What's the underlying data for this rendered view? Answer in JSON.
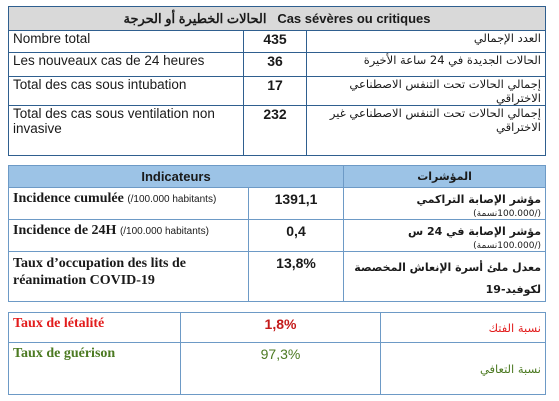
{
  "severe": {
    "title_ar": "الحالات الخطيرة أو الحرجة",
    "title_fr": "Cas sévères ou critiques",
    "rows": [
      {
        "fr": "Nombre total",
        "value": "435",
        "ar": "العدد الإجمالي"
      },
      {
        "fr": "Les nouveaux cas de 24 heures",
        "value": "36",
        "ar": "الحالات الجديدة في 24 ساعة الأخيرة"
      },
      {
        "fr": "Total des cas sous intubation",
        "value": "17",
        "ar": "إجمالي الحالات تحت التنفس الاصطناعي الاختراقي"
      },
      {
        "fr": "Total des cas sous ventilation non invasive",
        "value": "232",
        "ar": "إجمالي الحالات تحت التنفس الاصطناعي غير الاختراقي"
      }
    ]
  },
  "indicators": {
    "header_fr": "Indicateurs",
    "header_ar": "المؤشرات",
    "rows": [
      {
        "fr": "Incidence cumulée",
        "fr_note": "(/100.000 habitants)",
        "value": "1391,1",
        "ar": "مؤشر الإصابة التراكمي",
        "ar_note": "(/100.000نسمة)"
      },
      {
        "fr": "Incidence de 24H",
        "fr_note": "(/100.000 habitants)",
        "value": "0,4",
        "ar": "مؤشر الإصابة في 24 س",
        "ar_note": "(/100.000نسمة)"
      },
      {
        "fr": "Taux d’occupation des lits de réanimation COVID-19",
        "fr_note": "",
        "value": "13,8%",
        "ar": "معدل ملئ أسرة الإنعاش المخصصة لكوفيد-19",
        "ar_note": ""
      }
    ]
  },
  "rates": {
    "rows": [
      {
        "fr": "Taux de létalité",
        "value": "1,8%",
        "ar": "نسبة الفتك",
        "color": "#e21d1d"
      },
      {
        "fr": "Taux de guérison",
        "value": "97,3%",
        "ar": "نسبة التعافي",
        "color": "#4c7a22"
      }
    ]
  }
}
